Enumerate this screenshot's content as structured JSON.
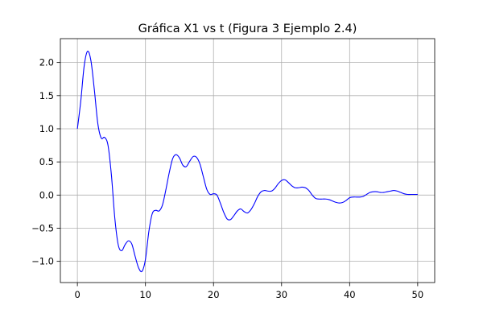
{
  "chart_data": {
    "type": "line",
    "title": "Gráfica X1 vs t (Figura 3 Ejemplo 2.4)",
    "xlabel": "",
    "ylabel": "",
    "xlim": [
      -2.5,
      52.5
    ],
    "ylim": [
      -1.32,
      2.36
    ],
    "xticks": [
      0,
      10,
      20,
      30,
      40,
      50
    ],
    "xtick_labels": [
      "0",
      "10",
      "20",
      "30",
      "40",
      "50"
    ],
    "yticks": [
      -1.0,
      -0.5,
      0.0,
      0.5,
      1.0,
      1.5,
      2.0
    ],
    "ytick_labels": [
      "−1.0",
      "−0.5",
      "0.0",
      "0.5",
      "1.0",
      "1.5",
      "2.0"
    ],
    "grid": true,
    "legend": "none",
    "series": [
      {
        "color": "#0000ff",
        "x": [
          0,
          0.5,
          1.0,
          1.5,
          2.0,
          2.5,
          3.0,
          3.5,
          4.0,
          4.5,
          5.0,
          5.5,
          6.0,
          6.5,
          7.0,
          7.5,
          8.0,
          8.5,
          9.0,
          9.5,
          10.0,
          10.5,
          11.0,
          11.5,
          12.0,
          12.5,
          13.0,
          13.5,
          14.0,
          14.5,
          15.0,
          15.5,
          16.0,
          16.5,
          17.0,
          17.5,
          18.0,
          18.5,
          19.0,
          19.5,
          20.0,
          20.5,
          21.0,
          21.5,
          22.0,
          22.5,
          23.0,
          23.5,
          24.0,
          24.5,
          25.0,
          25.5,
          26.0,
          26.5,
          27.0,
          27.5,
          28.0,
          28.5,
          29.0,
          29.5,
          30.0,
          30.5,
          31.0,
          31.5,
          32.0,
          32.5,
          33.0,
          33.5,
          34.0,
          34.5,
          35.0,
          35.5,
          36.0,
          36.5,
          37.0,
          37.5,
          38.0,
          38.5,
          39.0,
          39.5,
          40.0,
          40.5,
          41.0,
          41.5,
          42.0,
          42.5,
          43.0,
          43.5,
          44.0,
          44.5,
          45.0,
          45.5,
          46.0,
          46.5,
          47.0,
          47.5,
          48.0,
          48.5,
          49.0,
          49.5,
          50.0
        ],
        "y": [
          1.0,
          1.42,
          1.95,
          2.17,
          2.02,
          1.58,
          1.08,
          0.86,
          0.87,
          0.75,
          0.3,
          -0.35,
          -0.75,
          -0.84,
          -0.75,
          -0.69,
          -0.74,
          -0.93,
          -1.1,
          -1.15,
          -0.97,
          -0.55,
          -0.28,
          -0.23,
          -0.24,
          -0.15,
          0.08,
          0.34,
          0.55,
          0.61,
          0.56,
          0.45,
          0.43,
          0.51,
          0.58,
          0.57,
          0.47,
          0.28,
          0.09,
          0.01,
          0.02,
          0.0,
          -0.12,
          -0.26,
          -0.36,
          -0.37,
          -0.31,
          -0.24,
          -0.21,
          -0.25,
          -0.27,
          -0.22,
          -0.13,
          -0.02,
          0.05,
          0.07,
          0.06,
          0.06,
          0.1,
          0.17,
          0.22,
          0.23,
          0.19,
          0.14,
          0.11,
          0.11,
          0.12,
          0.11,
          0.07,
          0.0,
          -0.05,
          -0.06,
          -0.06,
          -0.06,
          -0.07,
          -0.09,
          -0.11,
          -0.12,
          -0.11,
          -0.08,
          -0.04,
          -0.03,
          -0.03,
          -0.03,
          -0.02,
          0.01,
          0.04,
          0.05,
          0.05,
          0.04,
          0.04,
          0.05,
          0.06,
          0.07,
          0.06,
          0.04,
          0.02,
          0.01,
          0.01,
          0.01,
          0.01
        ]
      }
    ]
  }
}
